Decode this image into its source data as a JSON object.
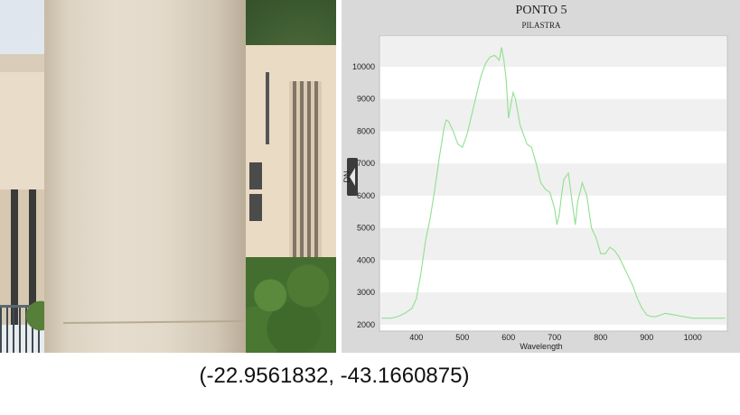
{
  "coordinates": "(-22.9561832, -43.1660875)",
  "chart_data": {
    "type": "line",
    "title": "PONTO 5",
    "subtitle": "PILASTRA",
    "xlabel": "Wavelength",
    "ylabel": "DN",
    "xlim": [
      320,
      1075
    ],
    "ylim": [
      1800,
      10950
    ],
    "x_ticks": [
      400,
      500,
      600,
      700,
      800,
      900,
      1000
    ],
    "y_ticks": [
      2000,
      3000,
      4000,
      5000,
      6000,
      7000,
      8000,
      9000,
      10000
    ],
    "line_color": "#8fe08f",
    "grid": "horizontal bands",
    "series": [
      {
        "x": [
          325,
          345,
          360,
          375,
          390,
          400,
          410,
          420,
          430,
          440,
          450,
          460,
          465,
          470,
          480,
          490,
          500,
          510,
          520,
          530,
          540,
          550,
          560,
          570,
          580,
          585,
          590,
          595,
          600,
          605,
          610,
          615,
          620,
          625,
          630,
          640,
          650,
          660,
          670,
          680,
          690,
          700,
          705,
          710,
          715,
          720,
          730,
          740,
          745,
          750,
          760,
          770,
          775,
          780,
          790,
          800,
          810,
          820,
          830,
          840,
          850,
          860,
          870,
          880,
          890,
          900,
          910,
          920,
          930,
          940,
          960,
          980,
          1000,
          1020,
          1040,
          1060,
          1070
        ],
        "y": [
          2200,
          2200,
          2250,
          2350,
          2500,
          2800,
          3600,
          4600,
          5300,
          6200,
          7200,
          8100,
          8350,
          8300,
          8000,
          7600,
          7500,
          7900,
          8500,
          9100,
          9700,
          10100,
          10300,
          10350,
          10200,
          10600,
          10200,
          9600,
          8400,
          8800,
          9200,
          9000,
          8600,
          8200,
          8000,
          7600,
          7500,
          7000,
          6400,
          6200,
          6100,
          5600,
          5100,
          5400,
          6000,
          6500,
          6700,
          5600,
          5100,
          5800,
          6400,
          6000,
          5500,
          5000,
          4700,
          4200,
          4200,
          4400,
          4300,
          4100,
          3800,
          3500,
          3200,
          2800,
          2500,
          2300,
          2250,
          2250,
          2300,
          2350,
          2300,
          2250,
          2200,
          2200,
          2200,
          2200,
          2200
        ]
      }
    ]
  }
}
